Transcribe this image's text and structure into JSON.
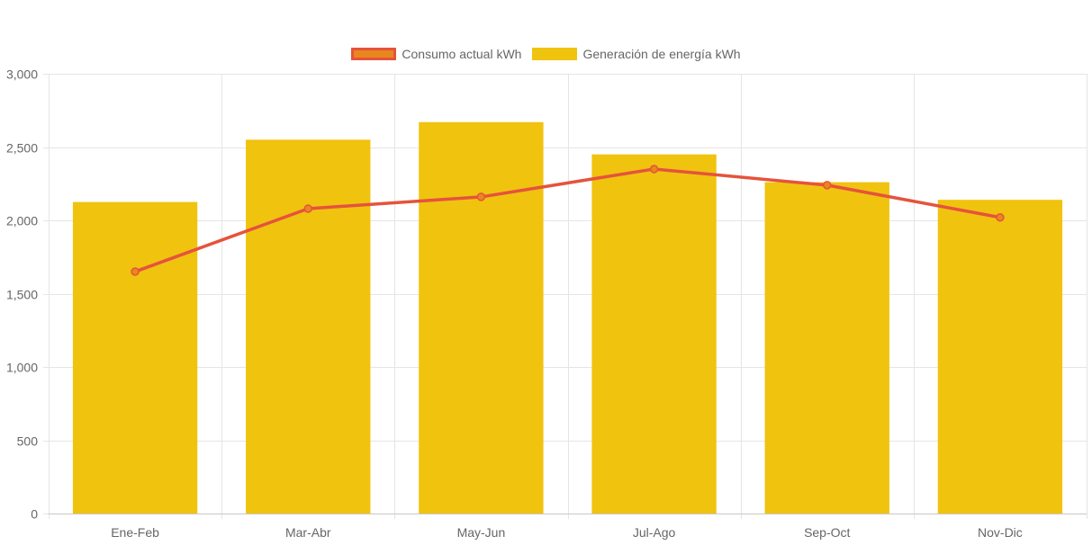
{
  "legend": {
    "line_label": "Consumo actual kWh",
    "bar_label": "Generación de energía kWh"
  },
  "colors": {
    "bar": "#f0c30f",
    "line": "#e5533c",
    "point_fill": "#e8871e",
    "grid": "#e5e5e5",
    "axis_text": "#666666"
  },
  "chart_data": {
    "type": "bar",
    "categories": [
      "Ene-Feb",
      "Mar-Abr",
      "May-Jun",
      "Jul-Ago",
      "Sep-Oct",
      "Nov-Dic"
    ],
    "series": [
      {
        "name": "Generación de energía kWh",
        "type": "bar",
        "values": [
          2125,
          2550,
          2670,
          2450,
          2260,
          2140
        ]
      },
      {
        "name": "Consumo actual kWh",
        "type": "line",
        "values": [
          1650,
          2080,
          2160,
          2350,
          2240,
          2020
        ]
      }
    ],
    "ylim": [
      0,
      3000
    ],
    "yticks": [
      0,
      500,
      1000,
      1500,
      2000,
      2500,
      3000
    ],
    "ytick_labels": [
      "0",
      "500",
      "1,000",
      "1,500",
      "2,000",
      "2,500",
      "3,000"
    ],
    "grid": true,
    "legend_position": "top-center"
  }
}
